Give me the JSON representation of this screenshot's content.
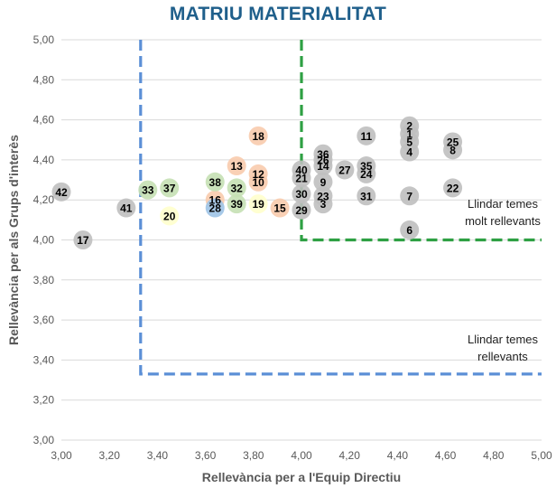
{
  "chart_data": {
    "type": "scatter",
    "title": "MATRIU MATERIALITAT",
    "xlabel": "Rellevància per a l'Equip Directiu",
    "ylabel": "Rellevància per als Grups d'interès",
    "xlim": [
      3.0,
      5.0
    ],
    "ylim": [
      3.0,
      5.0
    ],
    "x_ticks": [
      "3,00",
      "3,20",
      "3,40",
      "3,60",
      "3,80",
      "4,00",
      "4,20",
      "4,40",
      "4,60",
      "4,80",
      "5,00"
    ],
    "y_ticks": [
      "3,00",
      "3,20",
      "3,40",
      "3,60",
      "3,80",
      "4,00",
      "4,20",
      "4,40",
      "4,60",
      "4,80",
      "5,00"
    ],
    "grid": "horizontal",
    "colors": {
      "gray": "#bfbfbf",
      "orange": "#f8cbad",
      "green": "#c5e0b4",
      "blue": "#9dc3e6",
      "yellow": "#ffffcc",
      "threshold_green": "#2ea043",
      "threshold_blue": "#5b8fd6",
      "title": "#1f5f8b"
    },
    "points": [
      {
        "label": "1",
        "x": 4.45,
        "y": 4.53,
        "color": "gray"
      },
      {
        "label": "2",
        "x": 4.45,
        "y": 4.57,
        "color": "gray"
      },
      {
        "label": "3",
        "x": 4.09,
        "y": 4.18,
        "color": "gray"
      },
      {
        "label": "4",
        "x": 4.45,
        "y": 4.44,
        "color": "gray"
      },
      {
        "label": "5",
        "x": 4.45,
        "y": 4.49,
        "color": "gray"
      },
      {
        "label": "6",
        "x": 4.45,
        "y": 4.05,
        "color": "gray"
      },
      {
        "label": "7",
        "x": 4.45,
        "y": 4.22,
        "color": "gray"
      },
      {
        "label": "8",
        "x": 4.63,
        "y": 4.45,
        "color": "gray"
      },
      {
        "label": "9",
        "x": 4.09,
        "y": 4.29,
        "color": "gray"
      },
      {
        "label": "10",
        "x": 3.82,
        "y": 4.29,
        "color": "orange"
      },
      {
        "label": "11",
        "x": 4.27,
        "y": 4.52,
        "color": "gray"
      },
      {
        "label": "12",
        "x": 3.82,
        "y": 4.33,
        "color": "orange"
      },
      {
        "label": "13",
        "x": 3.73,
        "y": 4.37,
        "color": "orange"
      },
      {
        "label": "14",
        "x": 4.09,
        "y": 4.37,
        "color": "gray"
      },
      {
        "label": "15",
        "x": 3.91,
        "y": 4.16,
        "color": "orange"
      },
      {
        "label": "16",
        "x": 3.64,
        "y": 4.2,
        "color": "orange"
      },
      {
        "label": "17",
        "x": 3.09,
        "y": 4.0,
        "color": "gray"
      },
      {
        "label": "18",
        "x": 3.82,
        "y": 4.52,
        "color": "orange"
      },
      {
        "label": "19",
        "x": 3.82,
        "y": 4.18,
        "color": "yellow"
      },
      {
        "label": "20",
        "x": 3.45,
        "y": 4.12,
        "color": "yellow"
      },
      {
        "label": "21",
        "x": 4.0,
        "y": 4.31,
        "color": "gray"
      },
      {
        "label": "22",
        "x": 4.63,
        "y": 4.26,
        "color": "gray"
      },
      {
        "label": "23",
        "x": 4.09,
        "y": 4.22,
        "color": "gray"
      },
      {
        "label": "24",
        "x": 4.27,
        "y": 4.33,
        "color": "gray"
      },
      {
        "label": "25",
        "x": 4.63,
        "y": 4.49,
        "color": "gray"
      },
      {
        "label": "26",
        "x": 4.09,
        "y": 4.4,
        "color": "gray"
      },
      {
        "label": "27",
        "x": 4.18,
        "y": 4.35,
        "color": "gray"
      },
      {
        "label": "28",
        "x": 3.64,
        "y": 4.16,
        "color": "blue"
      },
      {
        "label": "29",
        "x": 4.0,
        "y": 4.15,
        "color": "gray"
      },
      {
        "label": "30",
        "x": 4.0,
        "y": 4.23,
        "color": "gray"
      },
      {
        "label": "31",
        "x": 4.27,
        "y": 4.22,
        "color": "gray"
      },
      {
        "label": "32",
        "x": 3.73,
        "y": 4.26,
        "color": "green"
      },
      {
        "label": "33",
        "x": 3.36,
        "y": 4.25,
        "color": "green"
      },
      {
        "label": "35",
        "x": 4.27,
        "y": 4.37,
        "color": "gray"
      },
      {
        "label": "36",
        "x": 4.09,
        "y": 4.43,
        "color": "gray"
      },
      {
        "label": "37",
        "x": 3.45,
        "y": 4.26,
        "color": "green"
      },
      {
        "label": "38",
        "x": 3.64,
        "y": 4.29,
        "color": "green"
      },
      {
        "label": "39",
        "x": 3.73,
        "y": 4.18,
        "color": "green"
      },
      {
        "label": "40",
        "x": 4.0,
        "y": 4.35,
        "color": "gray"
      },
      {
        "label": "41",
        "x": 3.27,
        "y": 4.16,
        "color": "gray"
      },
      {
        "label": "42",
        "x": 3.0,
        "y": 4.24,
        "color": "gray"
      }
    ],
    "thresholds": [
      {
        "name": "Llindar temes molt rellevants",
        "lines": [
          "Llindar temes",
          "molt rellevants"
        ],
        "x": 4.0,
        "y": 4.0,
        "color": "threshold_green"
      },
      {
        "name": "Llindar temes rellevants",
        "lines": [
          "Llindar temes",
          "rellevants"
        ],
        "x": 3.33,
        "y": 3.33,
        "color": "threshold_blue"
      }
    ]
  }
}
